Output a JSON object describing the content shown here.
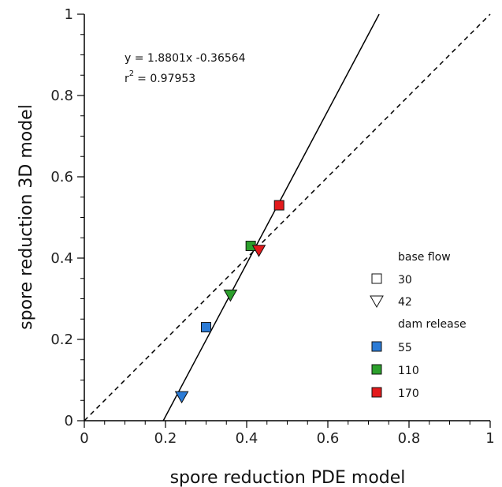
{
  "chart_data": {
    "type": "scatter",
    "xlabel": "spore reduction PDE model",
    "ylabel": "spore reduction 3D model",
    "xlim": [
      0,
      1
    ],
    "ylim": [
      0,
      1
    ],
    "xticks": [
      0,
      0.2,
      0.4,
      0.6,
      0.8,
      1
    ],
    "yticks": [
      0,
      0.2,
      0.4,
      0.6,
      0.8,
      1
    ],
    "xtick_labels": [
      "0",
      "0.2",
      "0.4",
      "0.6",
      "0.8",
      "1"
    ],
    "ytick_labels": [
      "0",
      "0.2",
      "0.4",
      "0.6",
      "0.8",
      "1"
    ],
    "minor_tick_step": 0.05,
    "grid": false,
    "points": [
      {
        "x": 0.24,
        "y": 0.06,
        "shape": "triangle-down",
        "color": "#2b7bd6"
      },
      {
        "x": 0.3,
        "y": 0.23,
        "shape": "square",
        "color": "#2b7bd6"
      },
      {
        "x": 0.36,
        "y": 0.31,
        "shape": "triangle-down",
        "color": "#2ca02c"
      },
      {
        "x": 0.41,
        "y": 0.43,
        "shape": "square",
        "color": "#2ca02c"
      },
      {
        "x": 0.43,
        "y": 0.42,
        "shape": "triangle-down",
        "color": "#e31a1c"
      },
      {
        "x": 0.48,
        "y": 0.53,
        "shape": "square",
        "color": "#e31a1c"
      }
    ],
    "fit_line": {
      "slope": 1.8801,
      "intercept": -0.36564,
      "style": "solid"
    },
    "identity_line": {
      "slope": 1,
      "intercept": 0,
      "style": "dashed"
    },
    "annotation": {
      "equation": "y = 1.8801x -0.36564",
      "r2_prefix": "r",
      "r2_exponent": "2",
      "r2_value": "= 0.97953"
    },
    "legend": {
      "position": "bottom-right",
      "shape_title": "base flow",
      "shapes": [
        {
          "label": "30",
          "shape": "square"
        },
        {
          "label": "42",
          "shape": "triangle-down"
        }
      ],
      "color_title": "dam release",
      "colors": [
        {
          "label": "55",
          "color": "#2b7bd6"
        },
        {
          "label": "110",
          "color": "#2ca02c"
        },
        {
          "label": "170",
          "color": "#e31a1c"
        }
      ]
    }
  }
}
